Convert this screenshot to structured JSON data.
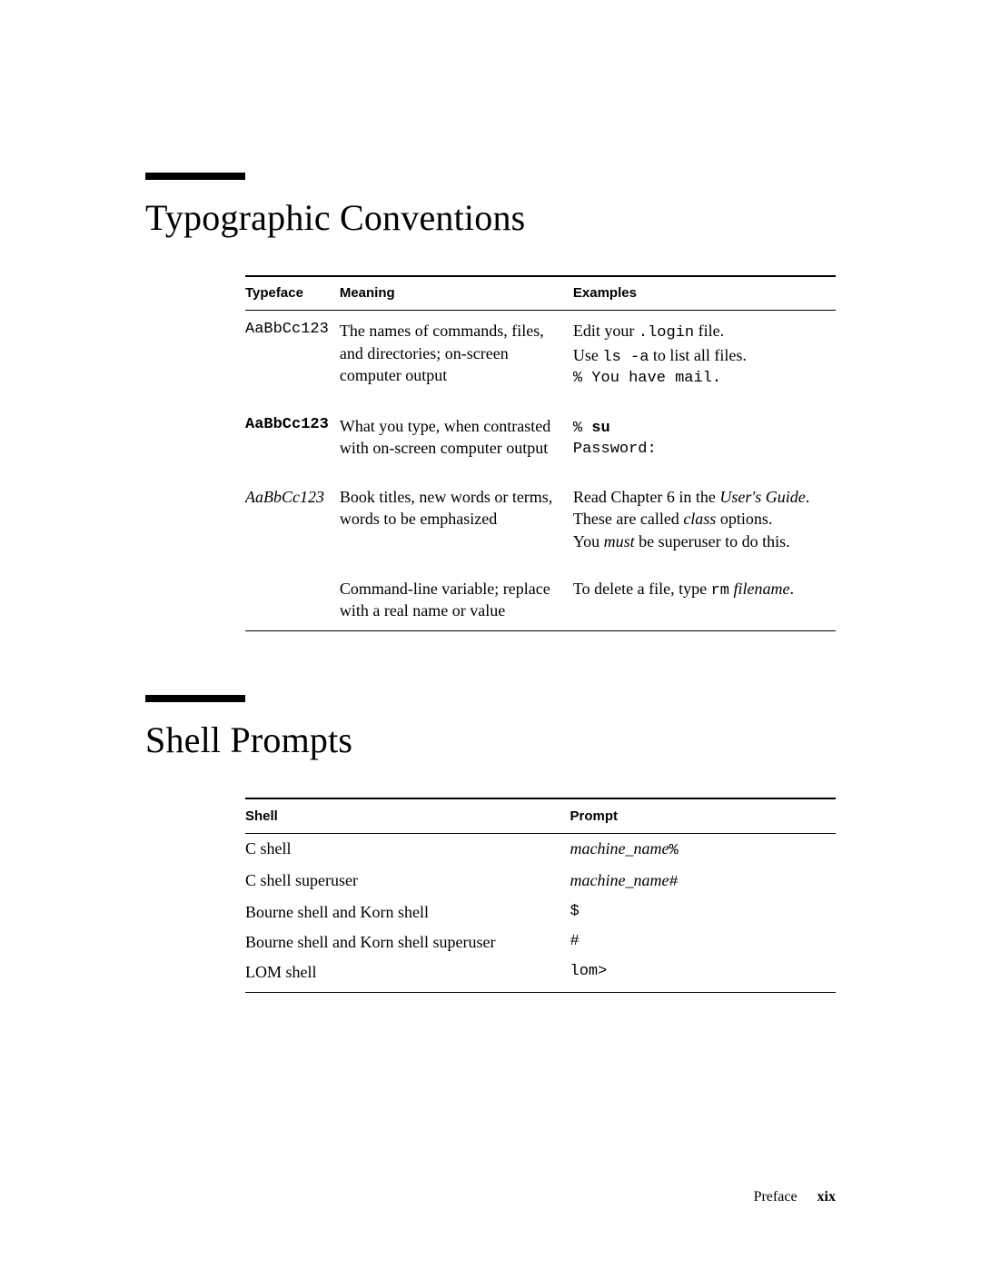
{
  "section1": {
    "heading": "Typographic Conventions",
    "columns": {
      "c1": "Typeface",
      "c2": "Meaning",
      "c3": "Examples"
    },
    "rows": {
      "r1": {
        "typeface": "AaBbCc123",
        "meaning": "The names of commands, files, and directories; on-screen computer output",
        "ex_a1": "Edit your ",
        "ex_a2": ".login",
        "ex_a3": " file.",
        "ex_b1": "Use ",
        "ex_b2": "ls -a",
        "ex_b3": " to list all files.",
        "ex_c": "% You have mail."
      },
      "r2": {
        "typeface": "AaBbCc123",
        "meaning": "What you type, when contrasted with on-screen computer output",
        "ex_a1": "% ",
        "ex_a2": "su",
        "ex_b": "Password:"
      },
      "r3": {
        "typeface": "AaBbCc123",
        "meaning": "Book titles, new words or terms, words to be emphasized",
        "ex_a1": "Read Chapter 6 in the ",
        "ex_a2": "User's Guide",
        "ex_a3": ".",
        "ex_b1": "These are called ",
        "ex_b2": "class",
        "ex_b3": " options.",
        "ex_c1": "You ",
        "ex_c2": "must",
        "ex_c3": " be superuser to do this."
      },
      "r4": {
        "meaning": "Command-line variable; replace with a real name or value",
        "ex_a1": "To delete a file, type ",
        "ex_a2": "rm",
        "ex_a3": " ",
        "ex_a4": "filename",
        "ex_a5": "."
      }
    }
  },
  "section2": {
    "heading": "Shell Prompts",
    "columns": {
      "c1": "Shell",
      "c2": "Prompt"
    },
    "rows": {
      "r1": {
        "shell": "C shell",
        "p1": "machine_name",
        "p2": "%"
      },
      "r2": {
        "shell": "C shell superuser",
        "p1": "machine_name",
        "p2": "#"
      },
      "r3": {
        "shell": "Bourne shell and Korn shell",
        "p1": "$"
      },
      "r4": {
        "shell": "Bourne shell and Korn shell superuser",
        "p1": "#"
      },
      "r5": {
        "shell": "LOM shell",
        "p1": "lom>"
      }
    }
  },
  "footer": {
    "label": "Preface",
    "page": "xix"
  }
}
